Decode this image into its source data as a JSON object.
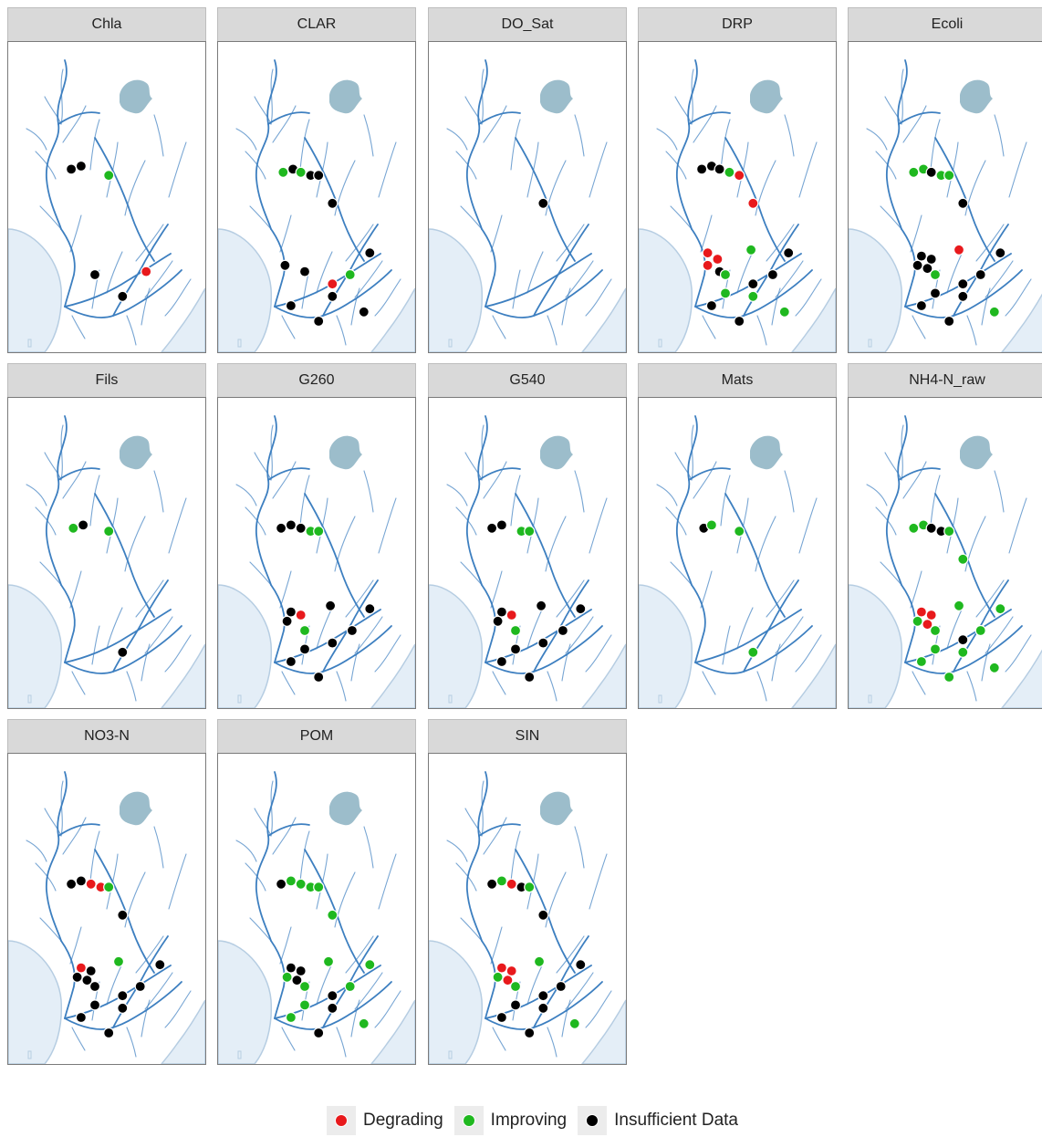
{
  "panels": [
    {
      "title": "Chla",
      "points": [
        {
          "x": 0.32,
          "y": 0.41,
          "status": "insufficient"
        },
        {
          "x": 0.37,
          "y": 0.4,
          "status": "insufficient"
        },
        {
          "x": 0.51,
          "y": 0.43,
          "status": "improving"
        },
        {
          "x": 0.7,
          "y": 0.74,
          "status": "degrading"
        },
        {
          "x": 0.44,
          "y": 0.75,
          "status": "insufficient"
        },
        {
          "x": 0.58,
          "y": 0.82,
          "status": "insufficient"
        }
      ]
    },
    {
      "title": "CLAR",
      "points": [
        {
          "x": 0.33,
          "y": 0.42,
          "status": "improving"
        },
        {
          "x": 0.38,
          "y": 0.41,
          "status": "insufficient"
        },
        {
          "x": 0.42,
          "y": 0.42,
          "status": "improving"
        },
        {
          "x": 0.47,
          "y": 0.43,
          "status": "insufficient"
        },
        {
          "x": 0.51,
          "y": 0.43,
          "status": "insufficient"
        },
        {
          "x": 0.58,
          "y": 0.52,
          "status": "insufficient"
        },
        {
          "x": 0.34,
          "y": 0.72,
          "status": "insufficient"
        },
        {
          "x": 0.44,
          "y": 0.74,
          "status": "insufficient"
        },
        {
          "x": 0.58,
          "y": 0.78,
          "status": "degrading"
        },
        {
          "x": 0.67,
          "y": 0.75,
          "status": "improving"
        },
        {
          "x": 0.77,
          "y": 0.68,
          "status": "insufficient"
        },
        {
          "x": 0.37,
          "y": 0.85,
          "status": "insufficient"
        },
        {
          "x": 0.58,
          "y": 0.82,
          "status": "insufficient"
        },
        {
          "x": 0.51,
          "y": 0.9,
          "status": "insufficient"
        },
        {
          "x": 0.74,
          "y": 0.87,
          "status": "insufficient"
        }
      ]
    },
    {
      "title": "DO_Sat",
      "points": [
        {
          "x": 0.58,
          "y": 0.52,
          "status": "insufficient"
        }
      ]
    },
    {
      "title": "DRP",
      "points": [
        {
          "x": 0.32,
          "y": 0.41,
          "status": "insufficient"
        },
        {
          "x": 0.37,
          "y": 0.4,
          "status": "insufficient"
        },
        {
          "x": 0.41,
          "y": 0.41,
          "status": "insufficient"
        },
        {
          "x": 0.46,
          "y": 0.42,
          "status": "improving"
        },
        {
          "x": 0.51,
          "y": 0.43,
          "status": "degrading"
        },
        {
          "x": 0.58,
          "y": 0.52,
          "status": "degrading"
        },
        {
          "x": 0.35,
          "y": 0.68,
          "status": "degrading"
        },
        {
          "x": 0.4,
          "y": 0.7,
          "status": "degrading"
        },
        {
          "x": 0.35,
          "y": 0.72,
          "status": "degrading"
        },
        {
          "x": 0.41,
          "y": 0.74,
          "status": "insufficient"
        },
        {
          "x": 0.44,
          "y": 0.75,
          "status": "improving"
        },
        {
          "x": 0.57,
          "y": 0.67,
          "status": "improving"
        },
        {
          "x": 0.76,
          "y": 0.68,
          "status": "insufficient"
        },
        {
          "x": 0.68,
          "y": 0.75,
          "status": "insufficient"
        },
        {
          "x": 0.58,
          "y": 0.78,
          "status": "insufficient"
        },
        {
          "x": 0.44,
          "y": 0.81,
          "status": "improving"
        },
        {
          "x": 0.58,
          "y": 0.82,
          "status": "improving"
        },
        {
          "x": 0.37,
          "y": 0.85,
          "status": "insufficient"
        },
        {
          "x": 0.51,
          "y": 0.9,
          "status": "insufficient"
        },
        {
          "x": 0.74,
          "y": 0.87,
          "status": "improving"
        }
      ]
    },
    {
      "title": "Ecoli",
      "points": [
        {
          "x": 0.33,
          "y": 0.42,
          "status": "improving"
        },
        {
          "x": 0.38,
          "y": 0.41,
          "status": "improving"
        },
        {
          "x": 0.42,
          "y": 0.42,
          "status": "insufficient"
        },
        {
          "x": 0.47,
          "y": 0.43,
          "status": "improving"
        },
        {
          "x": 0.51,
          "y": 0.43,
          "status": "improving"
        },
        {
          "x": 0.58,
          "y": 0.52,
          "status": "insufficient"
        },
        {
          "x": 0.37,
          "y": 0.69,
          "status": "insufficient"
        },
        {
          "x": 0.42,
          "y": 0.7,
          "status": "insufficient"
        },
        {
          "x": 0.35,
          "y": 0.72,
          "status": "insufficient"
        },
        {
          "x": 0.4,
          "y": 0.73,
          "status": "insufficient"
        },
        {
          "x": 0.44,
          "y": 0.75,
          "status": "improving"
        },
        {
          "x": 0.56,
          "y": 0.67,
          "status": "degrading"
        },
        {
          "x": 0.77,
          "y": 0.68,
          "status": "insufficient"
        },
        {
          "x": 0.67,
          "y": 0.75,
          "status": "insufficient"
        },
        {
          "x": 0.58,
          "y": 0.78,
          "status": "insufficient"
        },
        {
          "x": 0.44,
          "y": 0.81,
          "status": "insufficient"
        },
        {
          "x": 0.58,
          "y": 0.82,
          "status": "insufficient"
        },
        {
          "x": 0.37,
          "y": 0.85,
          "status": "insufficient"
        },
        {
          "x": 0.51,
          "y": 0.9,
          "status": "insufficient"
        },
        {
          "x": 0.74,
          "y": 0.87,
          "status": "improving"
        }
      ]
    },
    {
      "title": "Fils",
      "points": [
        {
          "x": 0.33,
          "y": 0.42,
          "status": "improving"
        },
        {
          "x": 0.38,
          "y": 0.41,
          "status": "insufficient"
        },
        {
          "x": 0.51,
          "y": 0.43,
          "status": "improving"
        },
        {
          "x": 0.58,
          "y": 0.82,
          "status": "insufficient"
        }
      ]
    },
    {
      "title": "G260",
      "points": [
        {
          "x": 0.32,
          "y": 0.42,
          "status": "insufficient"
        },
        {
          "x": 0.37,
          "y": 0.41,
          "status": "insufficient"
        },
        {
          "x": 0.42,
          "y": 0.42,
          "status": "insufficient"
        },
        {
          "x": 0.47,
          "y": 0.43,
          "status": "improving"
        },
        {
          "x": 0.51,
          "y": 0.43,
          "status": "improving"
        },
        {
          "x": 0.37,
          "y": 0.69,
          "status": "insufficient"
        },
        {
          "x": 0.42,
          "y": 0.7,
          "status": "degrading"
        },
        {
          "x": 0.35,
          "y": 0.72,
          "status": "insufficient"
        },
        {
          "x": 0.44,
          "y": 0.75,
          "status": "improving"
        },
        {
          "x": 0.57,
          "y": 0.67,
          "status": "insufficient"
        },
        {
          "x": 0.77,
          "y": 0.68,
          "status": "insufficient"
        },
        {
          "x": 0.68,
          "y": 0.75,
          "status": "insufficient"
        },
        {
          "x": 0.58,
          "y": 0.79,
          "status": "insufficient"
        },
        {
          "x": 0.44,
          "y": 0.81,
          "status": "insufficient"
        },
        {
          "x": 0.37,
          "y": 0.85,
          "status": "insufficient"
        },
        {
          "x": 0.51,
          "y": 0.9,
          "status": "insufficient"
        }
      ]
    },
    {
      "title": "G540",
      "points": [
        {
          "x": 0.32,
          "y": 0.42,
          "status": "insufficient"
        },
        {
          "x": 0.37,
          "y": 0.41,
          "status": "insufficient"
        },
        {
          "x": 0.47,
          "y": 0.43,
          "status": "improving"
        },
        {
          "x": 0.51,
          "y": 0.43,
          "status": "improving"
        },
        {
          "x": 0.37,
          "y": 0.69,
          "status": "insufficient"
        },
        {
          "x": 0.42,
          "y": 0.7,
          "status": "degrading"
        },
        {
          "x": 0.35,
          "y": 0.72,
          "status": "insufficient"
        },
        {
          "x": 0.44,
          "y": 0.75,
          "status": "improving"
        },
        {
          "x": 0.57,
          "y": 0.67,
          "status": "insufficient"
        },
        {
          "x": 0.77,
          "y": 0.68,
          "status": "insufficient"
        },
        {
          "x": 0.68,
          "y": 0.75,
          "status": "insufficient"
        },
        {
          "x": 0.58,
          "y": 0.79,
          "status": "insufficient"
        },
        {
          "x": 0.44,
          "y": 0.81,
          "status": "insufficient"
        },
        {
          "x": 0.37,
          "y": 0.85,
          "status": "insufficient"
        },
        {
          "x": 0.51,
          "y": 0.9,
          "status": "insufficient"
        }
      ]
    },
    {
      "title": "Mats",
      "points": [
        {
          "x": 0.33,
          "y": 0.42,
          "status": "insufficient"
        },
        {
          "x": 0.37,
          "y": 0.41,
          "status": "improving"
        },
        {
          "x": 0.51,
          "y": 0.43,
          "status": "improving"
        },
        {
          "x": 0.58,
          "y": 0.82,
          "status": "improving"
        }
      ]
    },
    {
      "title": "NH4-N_raw",
      "points": [
        {
          "x": 0.33,
          "y": 0.42,
          "status": "improving"
        },
        {
          "x": 0.38,
          "y": 0.41,
          "status": "improving"
        },
        {
          "x": 0.42,
          "y": 0.42,
          "status": "insufficient"
        },
        {
          "x": 0.47,
          "y": 0.43,
          "status": "insufficient"
        },
        {
          "x": 0.51,
          "y": 0.43,
          "status": "improving"
        },
        {
          "x": 0.58,
          "y": 0.52,
          "status": "improving"
        },
        {
          "x": 0.37,
          "y": 0.69,
          "status": "degrading"
        },
        {
          "x": 0.42,
          "y": 0.7,
          "status": "degrading"
        },
        {
          "x": 0.35,
          "y": 0.72,
          "status": "improving"
        },
        {
          "x": 0.4,
          "y": 0.73,
          "status": "degrading"
        },
        {
          "x": 0.44,
          "y": 0.75,
          "status": "improving"
        },
        {
          "x": 0.56,
          "y": 0.67,
          "status": "improving"
        },
        {
          "x": 0.77,
          "y": 0.68,
          "status": "improving"
        },
        {
          "x": 0.67,
          "y": 0.75,
          "status": "improving"
        },
        {
          "x": 0.58,
          "y": 0.78,
          "status": "insufficient"
        },
        {
          "x": 0.44,
          "y": 0.81,
          "status": "improving"
        },
        {
          "x": 0.58,
          "y": 0.82,
          "status": "improving"
        },
        {
          "x": 0.37,
          "y": 0.85,
          "status": "improving"
        },
        {
          "x": 0.51,
          "y": 0.9,
          "status": "improving"
        },
        {
          "x": 0.74,
          "y": 0.87,
          "status": "improving"
        }
      ]
    },
    {
      "title": "NO3-N",
      "points": [
        {
          "x": 0.32,
          "y": 0.42,
          "status": "insufficient"
        },
        {
          "x": 0.37,
          "y": 0.41,
          "status": "insufficient"
        },
        {
          "x": 0.42,
          "y": 0.42,
          "status": "degrading"
        },
        {
          "x": 0.47,
          "y": 0.43,
          "status": "degrading"
        },
        {
          "x": 0.51,
          "y": 0.43,
          "status": "improving"
        },
        {
          "x": 0.58,
          "y": 0.52,
          "status": "insufficient"
        },
        {
          "x": 0.37,
          "y": 0.69,
          "status": "degrading"
        },
        {
          "x": 0.42,
          "y": 0.7,
          "status": "insufficient"
        },
        {
          "x": 0.35,
          "y": 0.72,
          "status": "insufficient"
        },
        {
          "x": 0.4,
          "y": 0.73,
          "status": "insufficient"
        },
        {
          "x": 0.44,
          "y": 0.75,
          "status": "insufficient"
        },
        {
          "x": 0.56,
          "y": 0.67,
          "status": "improving"
        },
        {
          "x": 0.77,
          "y": 0.68,
          "status": "insufficient"
        },
        {
          "x": 0.67,
          "y": 0.75,
          "status": "insufficient"
        },
        {
          "x": 0.58,
          "y": 0.78,
          "status": "insufficient"
        },
        {
          "x": 0.44,
          "y": 0.81,
          "status": "insufficient"
        },
        {
          "x": 0.58,
          "y": 0.82,
          "status": "insufficient"
        },
        {
          "x": 0.37,
          "y": 0.85,
          "status": "insufficient"
        },
        {
          "x": 0.51,
          "y": 0.9,
          "status": "insufficient"
        }
      ]
    },
    {
      "title": "POM",
      "points": [
        {
          "x": 0.32,
          "y": 0.42,
          "status": "insufficient"
        },
        {
          "x": 0.37,
          "y": 0.41,
          "status": "improving"
        },
        {
          "x": 0.42,
          "y": 0.42,
          "status": "improving"
        },
        {
          "x": 0.47,
          "y": 0.43,
          "status": "improving"
        },
        {
          "x": 0.51,
          "y": 0.43,
          "status": "improving"
        },
        {
          "x": 0.58,
          "y": 0.52,
          "status": "improving"
        },
        {
          "x": 0.37,
          "y": 0.69,
          "status": "insufficient"
        },
        {
          "x": 0.42,
          "y": 0.7,
          "status": "insufficient"
        },
        {
          "x": 0.35,
          "y": 0.72,
          "status": "improving"
        },
        {
          "x": 0.4,
          "y": 0.73,
          "status": "insufficient"
        },
        {
          "x": 0.44,
          "y": 0.75,
          "status": "improving"
        },
        {
          "x": 0.56,
          "y": 0.67,
          "status": "improving"
        },
        {
          "x": 0.77,
          "y": 0.68,
          "status": "improving"
        },
        {
          "x": 0.67,
          "y": 0.75,
          "status": "improving"
        },
        {
          "x": 0.58,
          "y": 0.78,
          "status": "insufficient"
        },
        {
          "x": 0.44,
          "y": 0.81,
          "status": "improving"
        },
        {
          "x": 0.58,
          "y": 0.82,
          "status": "insufficient"
        },
        {
          "x": 0.37,
          "y": 0.85,
          "status": "improving"
        },
        {
          "x": 0.51,
          "y": 0.9,
          "status": "insufficient"
        },
        {
          "x": 0.74,
          "y": 0.87,
          "status": "improving"
        }
      ]
    },
    {
      "title": "SIN",
      "points": [
        {
          "x": 0.32,
          "y": 0.42,
          "status": "insufficient"
        },
        {
          "x": 0.37,
          "y": 0.41,
          "status": "improving"
        },
        {
          "x": 0.42,
          "y": 0.42,
          "status": "degrading"
        },
        {
          "x": 0.47,
          "y": 0.43,
          "status": "insufficient"
        },
        {
          "x": 0.51,
          "y": 0.43,
          "status": "improving"
        },
        {
          "x": 0.58,
          "y": 0.52,
          "status": "insufficient"
        },
        {
          "x": 0.37,
          "y": 0.69,
          "status": "degrading"
        },
        {
          "x": 0.42,
          "y": 0.7,
          "status": "degrading"
        },
        {
          "x": 0.35,
          "y": 0.72,
          "status": "improving"
        },
        {
          "x": 0.4,
          "y": 0.73,
          "status": "degrading"
        },
        {
          "x": 0.44,
          "y": 0.75,
          "status": "improving"
        },
        {
          "x": 0.56,
          "y": 0.67,
          "status": "improving"
        },
        {
          "x": 0.77,
          "y": 0.68,
          "status": "insufficient"
        },
        {
          "x": 0.67,
          "y": 0.75,
          "status": "insufficient"
        },
        {
          "x": 0.58,
          "y": 0.78,
          "status": "insufficient"
        },
        {
          "x": 0.44,
          "y": 0.81,
          "status": "insufficient"
        },
        {
          "x": 0.58,
          "y": 0.82,
          "status": "insufficient"
        },
        {
          "x": 0.37,
          "y": 0.85,
          "status": "insufficient"
        },
        {
          "x": 0.51,
          "y": 0.9,
          "status": "insufficient"
        },
        {
          "x": 0.74,
          "y": 0.87,
          "status": "improving"
        }
      ]
    }
  ],
  "legend": [
    {
      "key": "degrading",
      "label": "Degrading",
      "color": "#e8191c"
    },
    {
      "key": "improving",
      "label": "Improving",
      "color": "#1fb81f"
    },
    {
      "key": "insufficient",
      "label": "Insufficient Data",
      "color": "#000000"
    }
  ],
  "colors": {
    "river": "#3d7fc0",
    "lake": "#9cbdcb",
    "coast_fill": "#e4eef7",
    "coast_edge": "#b6cde2"
  }
}
